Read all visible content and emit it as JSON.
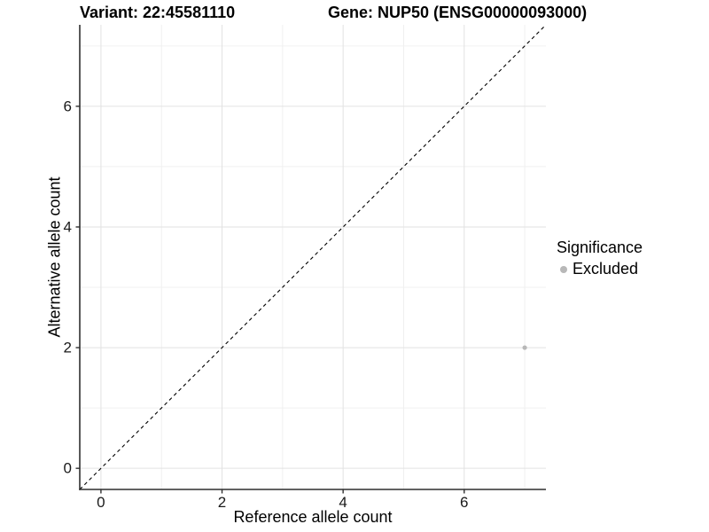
{
  "figure": {
    "title_left": "Variant: 22:45581110",
    "title_right": "Gene: NUP50 (ENSG00000093000)"
  },
  "chart_data": {
    "type": "scatter",
    "xlabel": "Reference allele count",
    "ylabel": "Alternative allele count",
    "xlim": [
      -0.35,
      7.35
    ],
    "ylim": [
      -0.35,
      7.35
    ],
    "x_major_ticks": [
      0,
      2,
      4,
      6
    ],
    "y_major_ticks": [
      0,
      2,
      4,
      6
    ],
    "x_minor_ticks": [
      1,
      3,
      5,
      7
    ],
    "y_minor_ticks": [
      1,
      3,
      5,
      7
    ],
    "grid": true,
    "reference_line": {
      "type": "identity",
      "from": [
        -0.35,
        -0.35
      ],
      "to": [
        7.35,
        7.35
      ],
      "style": "dashed",
      "color": "#000000"
    },
    "series": [
      {
        "name": "Excluded",
        "color": "#b8b8b8",
        "points": [
          {
            "x": 7,
            "y": 2
          }
        ]
      }
    ],
    "legend": {
      "title": "Significance",
      "position": "right",
      "items": [
        {
          "label": "Excluded",
          "color": "#b8b8b8"
        }
      ]
    },
    "colors": {
      "grid_major": "#e2e2e2",
      "grid_minor": "#f0f0f0",
      "axis_line": "#2f2f2f",
      "tick_label": "#1a1a1a",
      "point": "#b8b8b8"
    }
  }
}
